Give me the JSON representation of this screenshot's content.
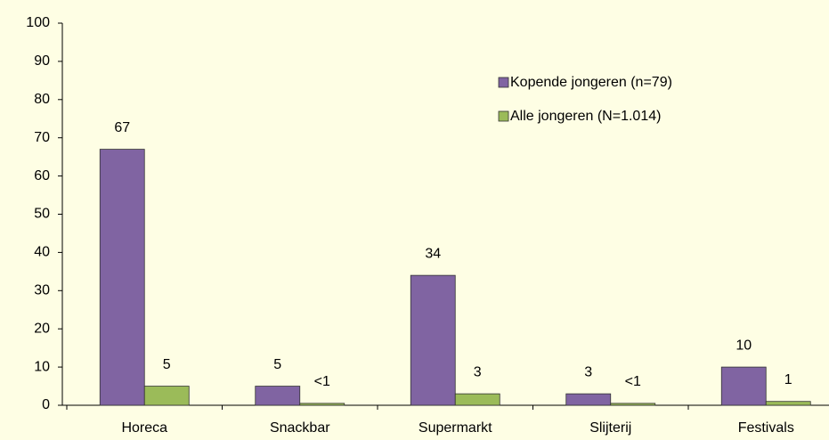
{
  "chart_data": {
    "type": "bar",
    "categories": [
      "Horeca",
      "Snackbar",
      "Supermarkt",
      "Slijterij",
      "Festivals"
    ],
    "series": [
      {
        "name": "Kopende jongeren (n=79)",
        "color": "#8064a2",
        "values": [
          67,
          5,
          34,
          3,
          10
        ]
      },
      {
        "name": "Alle jongeren (N=1.014)",
        "color": "#9bbb59",
        "values": [
          5,
          0.5,
          3,
          0.5,
          1
        ],
        "value_labels": [
          "5",
          "<1",
          "3",
          "<1",
          "1"
        ]
      }
    ],
    "ylim": [
      0,
      100
    ],
    "yticks": [
      0,
      10,
      20,
      30,
      40,
      50,
      60,
      70,
      80,
      90,
      100
    ],
    "grid": false,
    "legend": "upper right"
  }
}
